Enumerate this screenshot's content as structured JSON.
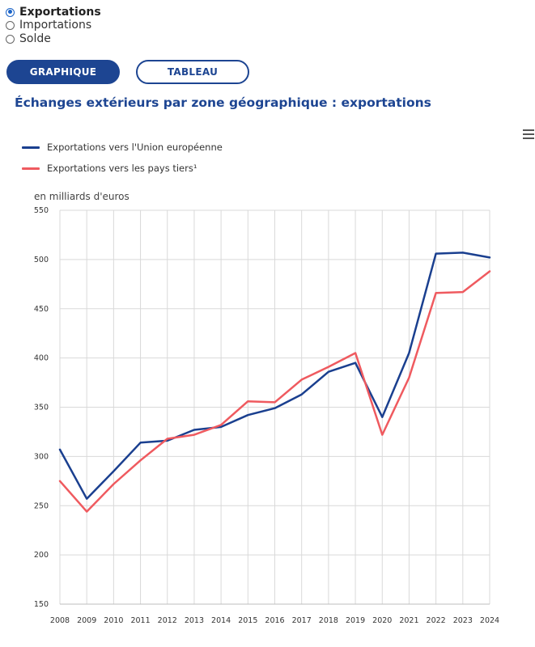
{
  "radio_options": [
    {
      "label": "Exportations",
      "checked": true
    },
    {
      "label": "Importations",
      "checked": false
    },
    {
      "label": "Solde",
      "checked": false
    }
  ],
  "buttons": {
    "graph": "GRAPHIQUE",
    "table": "TABLEAU"
  },
  "chart_title": "Échanges extérieurs par zone géographique : exportations",
  "colors": {
    "primary": "#1d4592",
    "eu_series": "#1a3f8f",
    "third_series": "#ef5a5f"
  },
  "icons": {
    "menu": "hamburger-menu-icon"
  },
  "chart_data": {
    "type": "line",
    "title": "Échanges extérieurs par zone géographique : exportations",
    "ylabel": "en milliards d'euros",
    "xlabel": "",
    "ylim": [
      150,
      550
    ],
    "yticks": [
      "150",
      "200",
      "250",
      "300",
      "350",
      "400",
      "450",
      "500",
      "550"
    ],
    "x": [
      "2008",
      "2009",
      "2010",
      "2011",
      "2012",
      "2013",
      "2014",
      "2015",
      "2016",
      "2017",
      "2018",
      "2019",
      "2020",
      "2021",
      "2022",
      "2023",
      "2024"
    ],
    "grid": true,
    "legend": "top-left",
    "series": [
      {
        "name": "Exportations vers l'Union européenne",
        "color": "#1a3f8f",
        "values": [
          307,
          257,
          285,
          314,
          316,
          327,
          330,
          342,
          349,
          363,
          386,
          395,
          340,
          405,
          506,
          507,
          502
        ]
      },
      {
        "name": "Exportations vers les pays tiers¹",
        "color": "#ef5a5f",
        "values": [
          275,
          244,
          272,
          296,
          318,
          322,
          332,
          356,
          355,
          378,
          391,
          405,
          322,
          380,
          466,
          467,
          488
        ]
      }
    ]
  }
}
